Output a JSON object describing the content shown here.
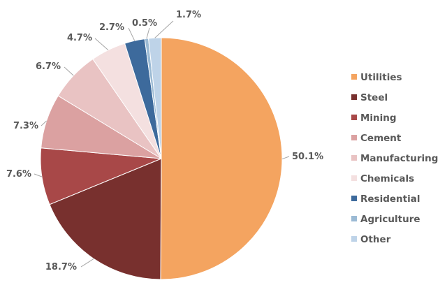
{
  "chart_data": {
    "type": "pie",
    "categories": [
      "Utilities",
      "Steel",
      "Mining",
      "Cement",
      "Manufacturing",
      "Chemicals",
      "Residential",
      "Agriculture",
      "Other"
    ],
    "values": [
      50.1,
      18.7,
      7.6,
      7.3,
      6.7,
      4.7,
      2.7,
      0.5,
      1.7
    ],
    "labels": [
      "50.1%",
      "18.7%",
      "7.6%",
      "7.3%",
      "6.7%",
      "4.7%",
      "2.7%",
      "0.5%",
      "1.7%"
    ],
    "colors": [
      "#f4a460",
      "#78302e",
      "#a84848",
      "#dba1a1",
      "#e9c3c3",
      "#f4e0e0",
      "#3d6a9c",
      "#9bbad4",
      "#bed3e8"
    ],
    "start_angle": "12 o'clock",
    "direction": "clockwise",
    "legend_position": "right"
  }
}
